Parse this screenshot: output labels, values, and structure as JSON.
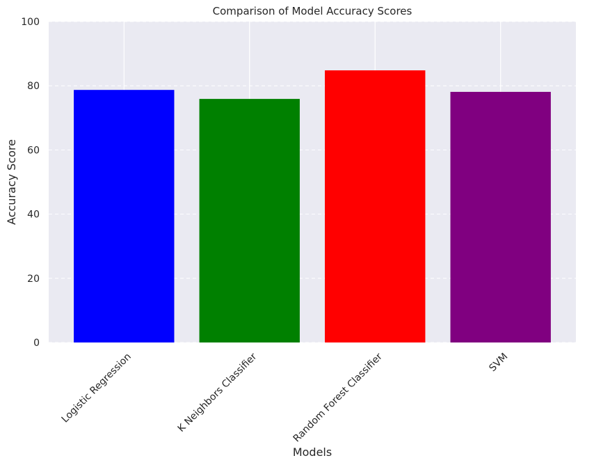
{
  "chart_data": {
    "type": "bar",
    "title": "Comparison of Model Accuracy Scores",
    "xlabel": "Models",
    "ylabel": "Accuracy Score",
    "categories": [
      "Logistic Regression",
      "K Neighbors Classifier",
      "Random Forest Classifier",
      "SVM"
    ],
    "values": [
      78.7,
      75.9,
      84.8,
      78.1
    ],
    "colors": [
      "#0000ff",
      "#008000",
      "#ff0000",
      "#800080"
    ],
    "ylim": [
      0,
      100
    ],
    "yticks": [
      0,
      20,
      40,
      60,
      80,
      100
    ],
    "grid": true,
    "legend": "none",
    "background_color": "#eaeaf2"
  }
}
